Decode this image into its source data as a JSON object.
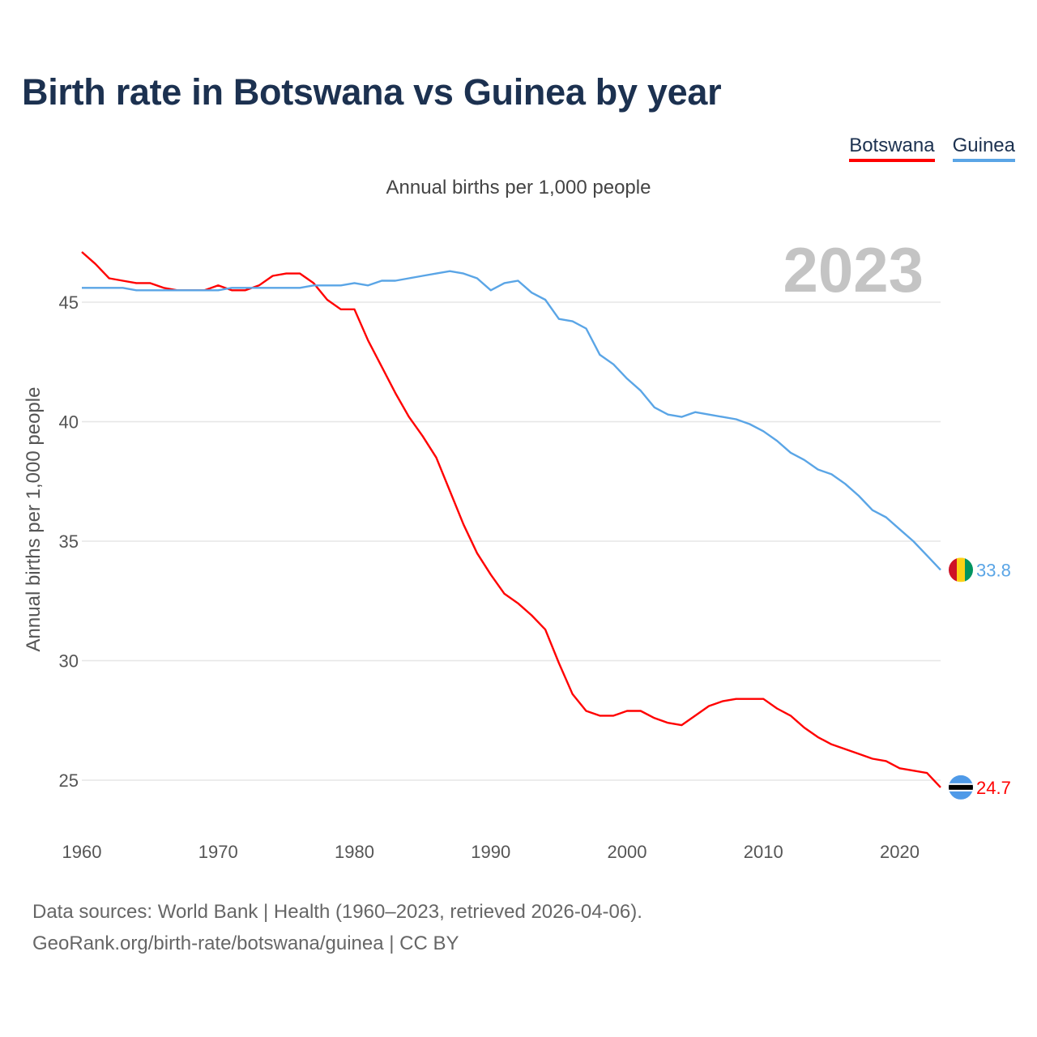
{
  "title": "Birth rate in Botswana vs Guinea by year",
  "subtitle": "Annual births per 1,000 people",
  "legend": [
    {
      "name": "Botswana",
      "color": "#ff0000"
    },
    {
      "name": "Guinea",
      "color": "#5aa5e6"
    }
  ],
  "year_label": "2023",
  "footer": {
    "line1": "Data sources: World Bank | Health (1960–2023, retrieved 2026-04-06).",
    "line2": "GeoRank.org/birth-rate/botswana/guinea | CC BY"
  },
  "chart_data": {
    "type": "line",
    "title": "Birth rate in Botswana vs Guinea by year",
    "xlabel": "",
    "ylabel": "Annual births per 1,000 people",
    "xlim": [
      1960,
      2023
    ],
    "ylim": [
      23,
      48
    ],
    "xticks": [
      1960,
      1970,
      1980,
      1990,
      2000,
      2010,
      2020
    ],
    "yticks": [
      25,
      30,
      35,
      40,
      45
    ],
    "grid": true,
    "x": [
      1960,
      1961,
      1962,
      1963,
      1964,
      1965,
      1966,
      1967,
      1968,
      1969,
      1970,
      1971,
      1972,
      1973,
      1974,
      1975,
      1976,
      1977,
      1978,
      1979,
      1980,
      1981,
      1982,
      1983,
      1984,
      1985,
      1986,
      1987,
      1988,
      1989,
      1990,
      1991,
      1992,
      1993,
      1994,
      1995,
      1996,
      1997,
      1998,
      1999,
      2000,
      2001,
      2002,
      2003,
      2004,
      2005,
      2006,
      2007,
      2008,
      2009,
      2010,
      2011,
      2012,
      2013,
      2014,
      2015,
      2016,
      2017,
      2018,
      2019,
      2020,
      2021,
      2022,
      2023
    ],
    "series": [
      {
        "name": "Botswana",
        "color": "#ff0000",
        "end_label": "24.7",
        "values": [
          47.1,
          46.6,
          46.0,
          45.9,
          45.8,
          45.8,
          45.6,
          45.5,
          45.5,
          45.5,
          45.7,
          45.5,
          45.5,
          45.7,
          46.1,
          46.2,
          46.2,
          45.8,
          45.1,
          44.7,
          44.7,
          43.4,
          42.3,
          41.2,
          40.2,
          39.4,
          38.5,
          37.1,
          35.7,
          34.5,
          33.6,
          32.8,
          32.4,
          31.9,
          31.3,
          29.9,
          28.6,
          27.9,
          27.7,
          27.7,
          27.9,
          27.9,
          27.6,
          27.4,
          27.3,
          27.7,
          28.1,
          28.3,
          28.4,
          28.4,
          28.4,
          28.0,
          27.7,
          27.2,
          26.8,
          26.5,
          26.3,
          26.1,
          25.9,
          25.8,
          25.5,
          25.4,
          25.3,
          24.7
        ]
      },
      {
        "name": "Guinea",
        "color": "#5aa5e6",
        "end_label": "33.8",
        "values": [
          45.6,
          45.6,
          45.6,
          45.6,
          45.5,
          45.5,
          45.5,
          45.5,
          45.5,
          45.5,
          45.5,
          45.6,
          45.6,
          45.6,
          45.6,
          45.6,
          45.6,
          45.7,
          45.7,
          45.7,
          45.8,
          45.7,
          45.9,
          45.9,
          46.0,
          46.1,
          46.2,
          46.3,
          46.2,
          46.0,
          45.5,
          45.8,
          45.9,
          45.4,
          45.1,
          44.3,
          44.2,
          43.9,
          42.8,
          42.4,
          41.8,
          41.3,
          40.6,
          40.3,
          40.2,
          40.4,
          40.3,
          40.2,
          40.1,
          39.9,
          39.6,
          39.2,
          38.7,
          38.4,
          38.0,
          37.8,
          37.4,
          36.9,
          36.3,
          36.0,
          35.5,
          35.0,
          34.4,
          33.8
        ]
      }
    ]
  }
}
